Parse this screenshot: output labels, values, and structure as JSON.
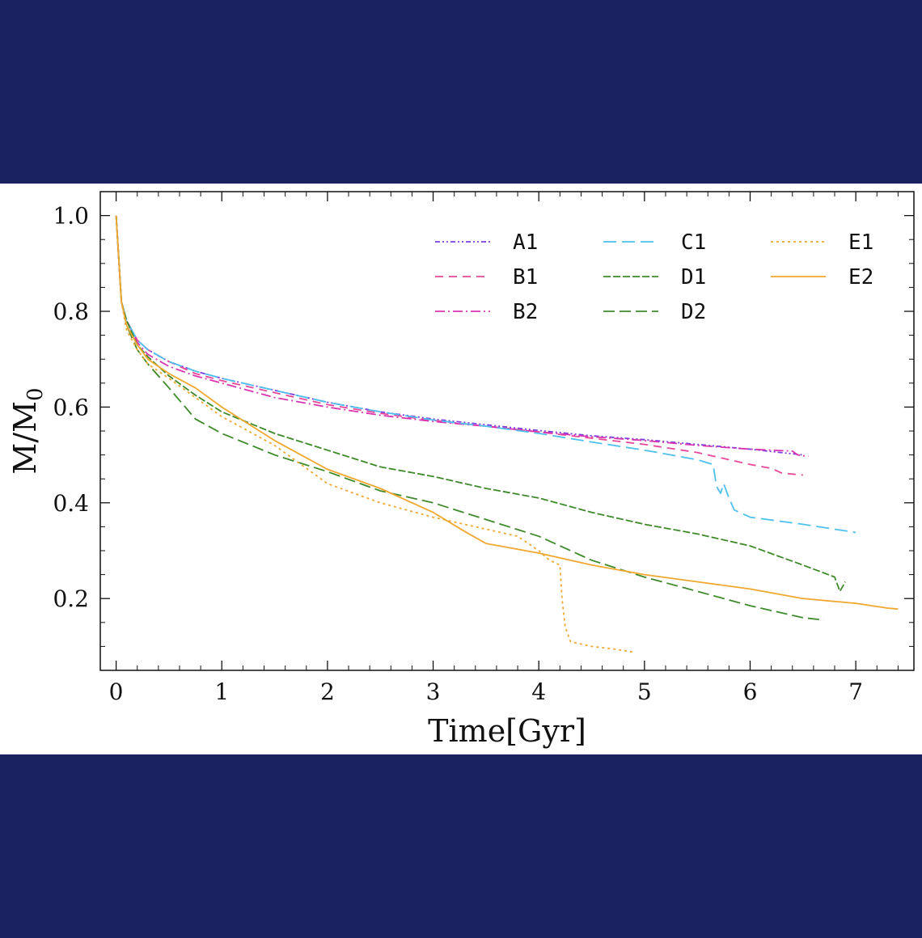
{
  "chart_data": {
    "type": "line",
    "xlabel": "Time[Gyr]",
    "ylabel": "M/M",
    "ylabel_sub": "0",
    "xlim": [
      -0.15,
      7.55
    ],
    "ylim": [
      0.05,
      1.05
    ],
    "xticks": [
      "0",
      "1",
      "2",
      "3",
      "4",
      "5",
      "6",
      "7"
    ],
    "yticks": [
      "0.2",
      "0.4",
      "0.6",
      "0.8",
      "1.0"
    ],
    "legend_placement": "top-right",
    "series": [
      {
        "name": "A1",
        "color": "#7b3fe0",
        "dash": "6,3,2,3,2,3",
        "x": [
          0,
          0.05,
          0.1,
          0.2,
          0.3,
          0.5,
          0.75,
          1.0,
          1.5,
          2.0,
          2.5,
          3.0,
          3.5,
          4.0,
          4.5,
          5.0,
          5.5,
          6.0,
          6.5
        ],
        "y": [
          1.0,
          0.82,
          0.78,
          0.74,
          0.72,
          0.695,
          0.675,
          0.66,
          0.635,
          0.61,
          0.59,
          0.575,
          0.563,
          0.551,
          0.54,
          0.532,
          0.522,
          0.512,
          0.5
        ]
      },
      {
        "name": "B1",
        "color": "#e8479a",
        "dash": "10,7",
        "x": [
          0,
          0.05,
          0.1,
          0.2,
          0.3,
          0.5,
          0.75,
          1.0,
          1.5,
          2.0,
          2.5,
          3.0,
          3.5,
          4.0,
          4.5,
          5.0,
          5.5,
          6.0,
          6.2,
          6.3,
          6.5
        ],
        "y": [
          1.0,
          0.82,
          0.78,
          0.74,
          0.72,
          0.695,
          0.67,
          0.655,
          0.63,
          0.605,
          0.587,
          0.572,
          0.56,
          0.548,
          0.535,
          0.522,
          0.505,
          0.48,
          0.472,
          0.462,
          0.458
        ]
      },
      {
        "name": "B2",
        "color": "#d835b0",
        "dash": "12,4,2,4",
        "x": [
          0,
          0.05,
          0.1,
          0.2,
          0.3,
          0.5,
          0.75,
          1.0,
          1.5,
          2.0,
          2.5,
          3.0,
          3.5,
          4.0,
          4.5,
          5.0,
          5.5,
          6.0,
          6.4,
          6.45,
          6.55
        ],
        "y": [
          1.0,
          0.82,
          0.78,
          0.735,
          0.71,
          0.685,
          0.665,
          0.65,
          0.62,
          0.6,
          0.583,
          0.57,
          0.56,
          0.548,
          0.538,
          0.53,
          0.52,
          0.512,
          0.508,
          0.5,
          0.497
        ]
      },
      {
        "name": "C1",
        "color": "#4fc0ee",
        "dash": "16,7",
        "x": [
          0,
          0.05,
          0.1,
          0.2,
          0.3,
          0.5,
          0.75,
          1.0,
          1.5,
          2.0,
          2.5,
          3.0,
          3.5,
          4.0,
          4.5,
          5.0,
          5.5,
          5.65,
          5.68,
          5.72,
          5.75,
          5.8,
          5.85,
          6.0,
          6.5,
          7.0
        ],
        "y": [
          1.0,
          0.82,
          0.78,
          0.74,
          0.72,
          0.695,
          0.675,
          0.66,
          0.635,
          0.61,
          0.59,
          0.573,
          0.56,
          0.545,
          0.527,
          0.51,
          0.49,
          0.48,
          0.435,
          0.42,
          0.44,
          0.41,
          0.385,
          0.37,
          0.355,
          0.338
        ]
      },
      {
        "name": "D1",
        "color": "#3e8a2a",
        "dash": "9,3",
        "x": [
          0,
          0.05,
          0.1,
          0.2,
          0.3,
          0.5,
          0.75,
          1.0,
          1.5,
          2.0,
          2.5,
          3.0,
          3.5,
          4.0,
          4.5,
          5.0,
          5.5,
          6.0,
          6.5,
          6.8,
          6.85,
          6.9
        ],
        "y": [
          1.0,
          0.82,
          0.78,
          0.73,
          0.705,
          0.665,
          0.625,
          0.59,
          0.545,
          0.51,
          0.475,
          0.455,
          0.43,
          0.41,
          0.38,
          0.355,
          0.335,
          0.31,
          0.27,
          0.245,
          0.215,
          0.235
        ]
      },
      {
        "name": "D2",
        "color": "#3e8a2a",
        "dash": "14,6",
        "x": [
          0,
          0.05,
          0.1,
          0.2,
          0.3,
          0.5,
          0.75,
          1.0,
          1.5,
          2.0,
          2.5,
          3.0,
          3.5,
          4.0,
          4.5,
          5.0,
          5.5,
          6.0,
          6.5,
          6.7
        ],
        "y": [
          1.0,
          0.82,
          0.77,
          0.72,
          0.69,
          0.64,
          0.575,
          0.545,
          0.5,
          0.465,
          0.425,
          0.4,
          0.365,
          0.33,
          0.28,
          0.245,
          0.215,
          0.185,
          0.16,
          0.155
        ]
      },
      {
        "name": "E1",
        "color": "#f0a830",
        "dash": "3,4",
        "x": [
          0,
          0.05,
          0.1,
          0.2,
          0.3,
          0.5,
          0.75,
          1.0,
          1.5,
          2.0,
          2.5,
          3.0,
          3.5,
          3.8,
          4.0,
          4.1,
          4.2,
          4.22,
          4.25,
          4.3,
          4.5,
          4.7,
          4.9
        ],
        "y": [
          1.0,
          0.82,
          0.76,
          0.72,
          0.69,
          0.66,
          0.62,
          0.58,
          0.52,
          0.44,
          0.4,
          0.37,
          0.345,
          0.33,
          0.3,
          0.28,
          0.27,
          0.2,
          0.14,
          0.11,
          0.1,
          0.095,
          0.088
        ]
      },
      {
        "name": "E2",
        "color": "#f0a830",
        "dash": "",
        "x": [
          0,
          0.05,
          0.1,
          0.2,
          0.3,
          0.5,
          0.75,
          1.0,
          1.5,
          2.0,
          2.5,
          3.0,
          3.3,
          3.5,
          4.0,
          4.5,
          5.0,
          5.5,
          6.0,
          6.5,
          7.0,
          7.3,
          7.4
        ],
        "y": [
          1.0,
          0.82,
          0.77,
          0.73,
          0.7,
          0.67,
          0.64,
          0.6,
          0.53,
          0.47,
          0.43,
          0.38,
          0.34,
          0.315,
          0.295,
          0.27,
          0.25,
          0.235,
          0.22,
          0.2,
          0.19,
          0.18,
          0.178
        ]
      }
    ]
  }
}
